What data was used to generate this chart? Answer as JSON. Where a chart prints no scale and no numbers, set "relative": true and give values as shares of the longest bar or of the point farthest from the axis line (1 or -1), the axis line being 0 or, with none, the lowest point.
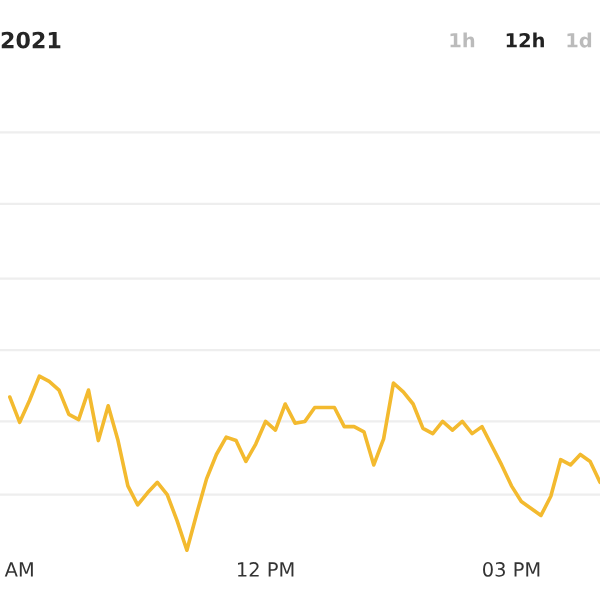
{
  "chart_data": {
    "type": "line",
    "title": "2021",
    "relative": true,
    "ref_lines": [
      {
        "axis": "y",
        "value": 0.32,
        "color": "#eeeeee"
      },
      {
        "axis": "y",
        "value": 0.74,
        "color": "#eeeeee"
      },
      {
        "axis": "y",
        "value": 1.15,
        "color": "#eeeeee"
      },
      {
        "axis": "y",
        "value": 1.56,
        "color": "#eeeeee"
      },
      {
        "axis": "y",
        "value": 1.99,
        "color": "#eeeeee"
      },
      {
        "axis": "y",
        "value": 2.4,
        "color": "#eeeeee"
      }
    ],
    "annotations": [
      "1h",
      "12h",
      "1d"
    ],
    "categories": [
      null,
      "AM",
      null,
      null,
      null,
      null,
      null,
      null,
      null,
      null,
      null,
      null,
      null,
      null,
      null,
      null,
      null,
      null,
      null,
      null,
      null,
      null,
      null,
      null,
      null,
      null,
      "12 PM",
      null,
      null,
      null,
      null,
      null,
      null,
      null,
      null,
      null,
      null,
      null,
      null,
      null,
      null,
      null,
      null,
      null,
      null,
      null,
      null,
      null,
      null,
      null,
      null,
      "03 PM",
      null,
      null,
      null,
      null,
      null,
      null,
      null,
      null,
      null
    ],
    "series": [
      {
        "color": "#f3ba2f",
        "values": [
          0.88,
          0.735,
          0.86,
          1.0,
          0.97,
          0.92,
          0.78,
          0.75,
          0.92,
          0.63,
          0.83,
          0.63,
          0.37,
          0.26,
          0.33,
          0.39,
          0.32,
          0.17,
          0,
          0.21,
          0.41,
          0.55,
          0.65,
          0.63,
          0.51,
          0.61,
          0.74,
          0.69,
          0.84,
          0.73,
          0.74,
          0.82,
          0.82,
          0.82,
          0.71,
          0.71,
          0.68,
          0.49,
          0.64,
          0.96,
          0.91,
          0.84,
          0.7,
          0.67,
          0.74,
          0.69,
          0.74,
          0.67,
          0.71,
          0.6,
          0.49,
          0.37,
          0.28,
          0.24,
          0.2,
          0.31,
          0.52,
          0.49,
          0.55,
          0.51,
          0.39
        ]
      }
    ]
  }
}
